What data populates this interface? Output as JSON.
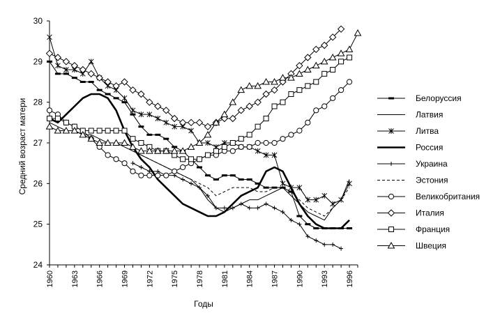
{
  "chart_data": {
    "type": "line",
    "title": "",
    "xlabel": "Годы",
    "ylabel": "Средний возраст матери",
    "xlim": [
      1960,
      1997
    ],
    "ylim": [
      24,
      30
    ],
    "x_ticks": [
      "1960",
      "1963",
      "1966",
      "1969",
      "1972",
      "1975",
      "1978",
      "1981",
      "1984",
      "1987",
      "1990",
      "1993",
      "1996"
    ],
    "y_ticks": [
      "24",
      "25",
      "26",
      "27",
      "28",
      "29",
      "30"
    ],
    "grid": false,
    "legend_position": "right",
    "series": [
      {
        "name": "Белоруссия",
        "style": "dash-marker",
        "x": [
          1960,
          1961,
          1962,
          1963,
          1964,
          1965,
          1966,
          1967,
          1968,
          1969,
          1970,
          1971,
          1972,
          1973,
          1974,
          1975,
          1976,
          1977,
          1978,
          1979,
          1980,
          1981,
          1982,
          1983,
          1984,
          1985,
          1986,
          1987,
          1988,
          1989,
          1990,
          1991,
          1992,
          1993,
          1994,
          1995,
          1996
        ],
        "y": [
          29.0,
          28.7,
          28.7,
          28.6,
          28.5,
          28.5,
          28.3,
          28.2,
          28.1,
          28.0,
          27.7,
          27.4,
          27.2,
          27.2,
          27.1,
          26.9,
          26.8,
          26.6,
          26.4,
          26.2,
          26.1,
          26.2,
          26.2,
          26.1,
          26.1,
          26.0,
          25.9,
          25.9,
          25.9,
          25.8,
          25.2,
          25.0,
          24.9,
          24.9,
          24.9,
          24.9,
          24.9
        ]
      },
      {
        "name": "Латвия",
        "style": "thin",
        "x": [
          1960,
          1961,
          1962,
          1963,
          1964,
          1965,
          1966,
          1967,
          1968,
          1969,
          1970,
          1971,
          1972,
          1973,
          1974,
          1975,
          1976,
          1977,
          1978,
          1979,
          1980,
          1981,
          1982,
          1983,
          1984,
          1985,
          1986,
          1987,
          1988,
          1989,
          1990,
          1991,
          1992,
          1993,
          1994,
          1995,
          1996
        ],
        "y": [
          27.5,
          27.4,
          27.3,
          27.3,
          27.2,
          27.2,
          27.1,
          27.0,
          27.0,
          26.9,
          26.8,
          26.7,
          26.6,
          26.5,
          26.4,
          26.3,
          26.2,
          26.1,
          25.9,
          25.6,
          25.4,
          25.3,
          25.4,
          25.5,
          25.6,
          25.6,
          25.7,
          25.8,
          25.9,
          25.7,
          25.5,
          25.3,
          25.2,
          25.1,
          25.4,
          25.6,
          26.1
        ]
      },
      {
        "name": "Литва",
        "style": "star",
        "x": [
          1960,
          1961,
          1962,
          1963,
          1964,
          1965,
          1966,
          1967,
          1968,
          1969,
          1970,
          1971,
          1972,
          1973,
          1974,
          1975,
          1976,
          1977,
          1978,
          1979,
          1980,
          1981,
          1982,
          1983,
          1984,
          1985,
          1986,
          1987,
          1988,
          1989,
          1990,
          1991,
          1992,
          1993,
          1994,
          1995,
          1996
        ],
        "y": [
          29.6,
          28.9,
          28.8,
          28.8,
          28.7,
          29.0,
          28.6,
          28.4,
          28.3,
          28.1,
          27.8,
          27.7,
          27.7,
          27.6,
          27.5,
          27.4,
          27.4,
          27.3,
          27.0,
          27.0,
          26.9,
          27.0,
          27.0,
          26.9,
          26.9,
          26.8,
          26.7,
          26.7,
          26.0,
          25.9,
          25.9,
          25.6,
          25.6,
          25.7,
          25.5,
          25.6,
          26.0
        ]
      },
      {
        "name": "Россия",
        "style": "bold",
        "x": [
          1960,
          1961,
          1962,
          1963,
          1964,
          1965,
          1966,
          1967,
          1968,
          1969,
          1970,
          1971,
          1972,
          1973,
          1974,
          1975,
          1976,
          1977,
          1978,
          1979,
          1980,
          1981,
          1982,
          1983,
          1984,
          1985,
          1986,
          1987,
          1988,
          1989,
          1990,
          1991,
          1992,
          1993,
          1994,
          1995,
          1996
        ],
        "y": [
          27.6,
          27.5,
          27.7,
          27.9,
          28.1,
          28.2,
          28.2,
          28.1,
          27.8,
          27.3,
          26.9,
          26.6,
          26.4,
          26.1,
          25.9,
          25.7,
          25.5,
          25.4,
          25.3,
          25.2,
          25.2,
          25.3,
          25.5,
          25.7,
          25.8,
          25.9,
          26.3,
          26.4,
          26.3,
          25.9,
          25.5,
          25.2,
          25.0,
          24.9,
          24.9,
          24.9,
          25.1
        ]
      },
      {
        "name": "Украина",
        "style": "plus",
        "x": [
          1970,
          1971,
          1972,
          1973,
          1974,
          1975,
          1976,
          1977,
          1978,
          1979,
          1980,
          1981,
          1982,
          1983,
          1984,
          1985,
          1986,
          1987,
          1988,
          1989,
          1990,
          1991,
          1992,
          1993,
          1994,
          1995
        ],
        "y": [
          26.5,
          26.4,
          26.3,
          26.3,
          26.2,
          26.2,
          26.1,
          26.0,
          25.9,
          25.7,
          25.4,
          25.4,
          25.4,
          25.5,
          25.4,
          25.4,
          25.5,
          25.4,
          25.3,
          25.1,
          25.0,
          24.7,
          24.6,
          24.5,
          24.5,
          24.4
        ]
      },
      {
        "name": "Эстония",
        "style": "dashed",
        "x": [
          1970,
          1971,
          1972,
          1973,
          1974,
          1975,
          1976,
          1977,
          1978,
          1979,
          1980,
          1981,
          1982,
          1983,
          1984,
          1985,
          1986,
          1987,
          1988,
          1989,
          1990,
          1991,
          1992,
          1993,
          1994,
          1995,
          1996
        ],
        "y": [
          26.8,
          26.7,
          26.6,
          26.5,
          26.4,
          26.3,
          26.2,
          26.1,
          26.0,
          25.9,
          25.7,
          25.8,
          25.9,
          25.9,
          25.9,
          25.8,
          25.8,
          25.9,
          25.9,
          25.8,
          25.6,
          25.4,
          25.3,
          25.2,
          25.4,
          25.6,
          25.9
        ]
      },
      {
        "name": "Великобритания",
        "style": "circle",
        "x": [
          1960,
          1961,
          1962,
          1963,
          1964,
          1965,
          1966,
          1967,
          1968,
          1969,
          1970,
          1971,
          1972,
          1973,
          1974,
          1975,
          1976,
          1977,
          1978,
          1979,
          1980,
          1981,
          1982,
          1983,
          1984,
          1985,
          1986,
          1987,
          1988,
          1989,
          1990,
          1991,
          1992,
          1993,
          1994,
          1995,
          1996
        ],
        "y": [
          27.8,
          27.7,
          27.5,
          27.4,
          27.3,
          27.1,
          26.9,
          26.7,
          26.6,
          26.5,
          26.3,
          26.2,
          26.2,
          26.2,
          26.2,
          26.3,
          26.4,
          26.5,
          26.6,
          26.7,
          26.7,
          26.8,
          26.8,
          26.9,
          26.9,
          27.0,
          27.0,
          27.0,
          27.1,
          27.2,
          27.3,
          27.5,
          27.8,
          27.9,
          28.1,
          28.3,
          28.5
        ]
      },
      {
        "name": "Италия",
        "style": "diamond",
        "x": [
          1960,
          1961,
          1962,
          1963,
          1964,
          1965,
          1966,
          1967,
          1968,
          1969,
          1970,
          1971,
          1972,
          1973,
          1974,
          1975,
          1976,
          1977,
          1978,
          1979,
          1980,
          1981,
          1982,
          1983,
          1984,
          1985,
          1986,
          1987,
          1988,
          1989,
          1990,
          1991,
          1992,
          1993,
          1994,
          1995
        ],
        "y": [
          29.2,
          29.1,
          29.0,
          28.9,
          28.8,
          28.7,
          28.6,
          28.5,
          28.4,
          28.5,
          28.3,
          28.2,
          28.0,
          27.9,
          27.8,
          27.6,
          27.5,
          27.5,
          27.5,
          27.4,
          27.5,
          27.6,
          27.6,
          27.8,
          27.9,
          28.0,
          28.2,
          28.3,
          28.5,
          28.7,
          28.9,
          29.1,
          29.3,
          29.4,
          29.6,
          29.8
        ]
      },
      {
        "name": "Франция",
        "style": "square",
        "x": [
          1960,
          1961,
          1962,
          1963,
          1964,
          1965,
          1966,
          1967,
          1968,
          1969,
          1970,
          1971,
          1972,
          1973,
          1974,
          1975,
          1976,
          1977,
          1978,
          1979,
          1980,
          1981,
          1982,
          1983,
          1984,
          1985,
          1986,
          1987,
          1988,
          1989,
          1990,
          1991,
          1992,
          1993,
          1994,
          1995,
          1996
        ],
        "y": [
          27.6,
          27.6,
          27.5,
          27.4,
          27.3,
          27.3,
          27.3,
          27.3,
          27.3,
          27.3,
          27.1,
          27.0,
          26.9,
          26.8,
          26.8,
          26.7,
          26.6,
          26.6,
          26.6,
          26.7,
          26.8,
          26.9,
          27.0,
          27.1,
          27.2,
          27.4,
          27.6,
          27.9,
          28.0,
          28.2,
          28.3,
          28.4,
          28.5,
          28.7,
          28.8,
          29.0,
          29.1
        ]
      },
      {
        "name": "Швеция",
        "style": "triangle",
        "x": [
          1960,
          1961,
          1962,
          1963,
          1964,
          1965,
          1966,
          1967,
          1968,
          1969,
          1970,
          1971,
          1972,
          1973,
          1974,
          1975,
          1976,
          1977,
          1978,
          1979,
          1980,
          1981,
          1982,
          1983,
          1984,
          1985,
          1986,
          1987,
          1988,
          1989,
          1990,
          1991,
          1992,
          1993,
          1994,
          1995,
          1996,
          1997
        ],
        "y": [
          27.4,
          27.3,
          27.3,
          27.3,
          27.2,
          27.1,
          27.0,
          27.0,
          27.0,
          27.0,
          26.9,
          26.8,
          26.8,
          26.8,
          26.8,
          26.8,
          26.8,
          26.9,
          27.0,
          27.2,
          27.5,
          27.7,
          28.0,
          28.3,
          28.4,
          28.4,
          28.5,
          28.5,
          28.6,
          28.6,
          28.7,
          28.8,
          28.9,
          29.0,
          29.1,
          29.2,
          29.3,
          29.7
        ]
      }
    ]
  }
}
